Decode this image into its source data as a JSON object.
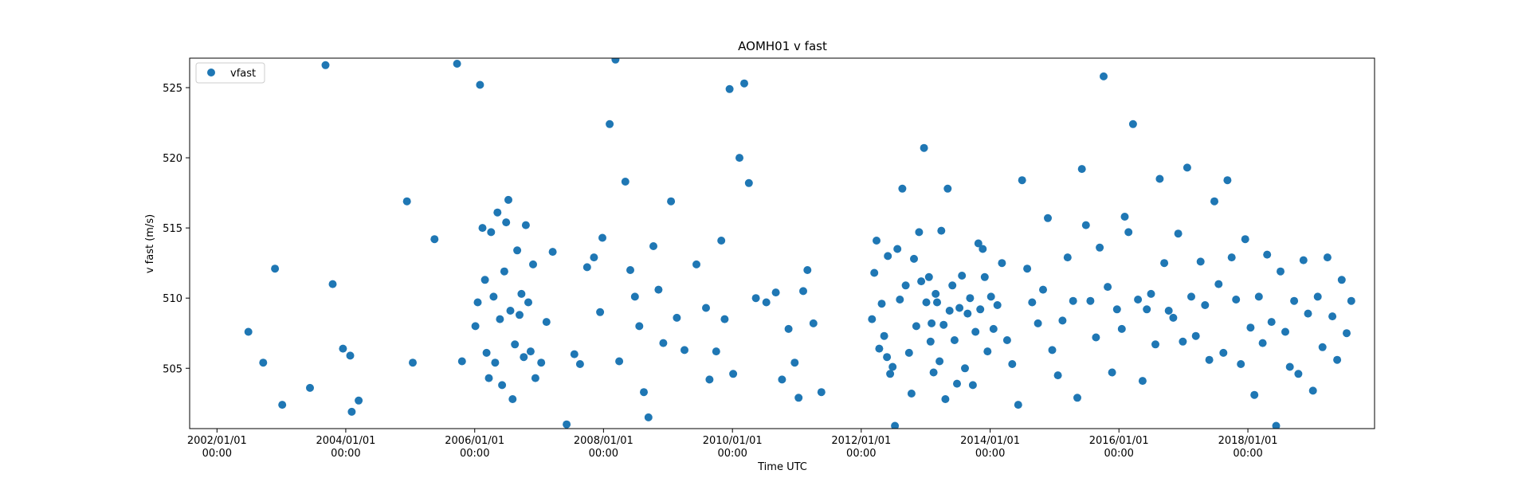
{
  "chart_data": {
    "type": "scatter",
    "title": "AOMH01 v fast",
    "xlabel": "Time UTC",
    "ylabel": "v fast (m/s)",
    "xlim": [
      "2001-07-30",
      "2019-12-20"
    ],
    "ylim": [
      500.7,
      527.1
    ],
    "x_ticks": [
      {
        "date": "2002-01-01",
        "label": "2002/01/01\n00:00"
      },
      {
        "date": "2004-01-01",
        "label": "2004/01/01\n00:00"
      },
      {
        "date": "2006-01-01",
        "label": "2006/01/01\n00:00"
      },
      {
        "date": "2008-01-01",
        "label": "2008/01/01\n00:00"
      },
      {
        "date": "2010-01-01",
        "label": "2010/01/01\n00:00"
      },
      {
        "date": "2012-01-01",
        "label": "2012/01/01\n00:00"
      },
      {
        "date": "2014-01-01",
        "label": "2014/01/01\n00:00"
      },
      {
        "date": "2016-01-01",
        "label": "2016/01/01\n00:00"
      },
      {
        "date": "2018-01-01",
        "label": "2018/01/01\n00:00"
      }
    ],
    "y_ticks": [
      505,
      510,
      515,
      520,
      525
    ],
    "grid": false,
    "legend": {
      "position": "top-left"
    },
    "color": "#1f77b4",
    "series": [
      {
        "name": "vfast",
        "points": [
          [
            "2002-06-28",
            507.6
          ],
          [
            "2002-09-20",
            505.4
          ],
          [
            "2002-11-26",
            512.1
          ],
          [
            "2003-01-06",
            502.4
          ],
          [
            "2003-06-12",
            503.6
          ],
          [
            "2003-09-08",
            526.6
          ],
          [
            "2003-10-19",
            511.0
          ],
          [
            "2003-12-16",
            506.4
          ],
          [
            "2004-01-26",
            505.9
          ],
          [
            "2004-02-04",
            501.9
          ],
          [
            "2004-03-14",
            502.7
          ],
          [
            "2004-12-13",
            516.9
          ],
          [
            "2005-01-15",
            505.4
          ],
          [
            "2005-05-18",
            514.2
          ],
          [
            "2005-09-23",
            526.7
          ],
          [
            "2005-10-21",
            505.5
          ],
          [
            "2006-01-05",
            508.0
          ],
          [
            "2006-01-18",
            509.7
          ],
          [
            "2006-01-31",
            525.2
          ],
          [
            "2006-02-14",
            515.0
          ],
          [
            "2006-02-28",
            511.3
          ],
          [
            "2006-03-09",
            506.1
          ],
          [
            "2006-03-22",
            504.3
          ],
          [
            "2006-04-04",
            514.7
          ],
          [
            "2006-04-18",
            510.1
          ],
          [
            "2006-04-27",
            505.4
          ],
          [
            "2006-05-10",
            516.1
          ],
          [
            "2006-05-24",
            508.5
          ],
          [
            "2006-06-05",
            503.8
          ],
          [
            "2006-06-18",
            511.9
          ],
          [
            "2006-06-28",
            515.4
          ],
          [
            "2006-07-11",
            517.0
          ],
          [
            "2006-07-22",
            509.1
          ],
          [
            "2006-08-04",
            502.8
          ],
          [
            "2006-08-17",
            506.7
          ],
          [
            "2006-08-30",
            513.4
          ],
          [
            "2006-09-12",
            508.8
          ],
          [
            "2006-09-23",
            510.3
          ],
          [
            "2006-10-06",
            505.8
          ],
          [
            "2006-10-18",
            515.2
          ],
          [
            "2006-11-01",
            509.7
          ],
          [
            "2006-11-14",
            506.2
          ],
          [
            "2006-11-28",
            512.4
          ],
          [
            "2006-12-11",
            504.3
          ],
          [
            "2007-01-13",
            505.4
          ],
          [
            "2007-02-12",
            508.3
          ],
          [
            "2007-03-19",
            513.3
          ],
          [
            "2007-06-06",
            501.0
          ],
          [
            "2007-07-20",
            506.0
          ],
          [
            "2007-08-21",
            505.3
          ],
          [
            "2007-09-30",
            512.2
          ],
          [
            "2007-11-08",
            512.9
          ],
          [
            "2007-12-13",
            509.0
          ],
          [
            "2007-12-26",
            514.3
          ],
          [
            "2008-02-05",
            522.4
          ],
          [
            "2008-03-09",
            527.0
          ],
          [
            "2008-03-30",
            505.5
          ],
          [
            "2008-05-04",
            518.3
          ],
          [
            "2008-06-01",
            512.0
          ],
          [
            "2008-06-27",
            510.1
          ],
          [
            "2008-07-22",
            508.0
          ],
          [
            "2008-08-17",
            503.3
          ],
          [
            "2008-09-12",
            501.5
          ],
          [
            "2008-10-10",
            513.7
          ],
          [
            "2008-11-08",
            510.6
          ],
          [
            "2008-12-05",
            506.8
          ],
          [
            "2009-01-18",
            516.9
          ],
          [
            "2009-02-20",
            508.6
          ],
          [
            "2009-04-04",
            506.3
          ],
          [
            "2009-06-11",
            512.4
          ],
          [
            "2009-08-04",
            509.3
          ],
          [
            "2009-08-24",
            504.2
          ],
          [
            "2009-10-01",
            506.2
          ],
          [
            "2009-10-30",
            514.1
          ],
          [
            "2009-11-18",
            508.5
          ],
          [
            "2009-12-16",
            524.9
          ],
          [
            "2010-01-05",
            504.6
          ],
          [
            "2010-02-10",
            520.0
          ],
          [
            "2010-03-09",
            525.3
          ],
          [
            "2010-04-04",
            518.2
          ],
          [
            "2010-05-14",
            510.0
          ],
          [
            "2010-07-12",
            509.7
          ],
          [
            "2010-09-04",
            510.4
          ],
          [
            "2010-10-09",
            504.2
          ],
          [
            "2010-11-15",
            507.8
          ],
          [
            "2010-12-20",
            505.4
          ],
          [
            "2011-01-11",
            502.9
          ],
          [
            "2011-02-06",
            510.5
          ],
          [
            "2011-03-02",
            512.0
          ],
          [
            "2011-04-05",
            508.2
          ],
          [
            "2011-05-20",
            503.3
          ],
          [
            "2012-03-02",
            508.5
          ],
          [
            "2012-04-12",
            506.4
          ],
          [
            "2012-05-26",
            505.8
          ],
          [
            "2012-07-10",
            500.9
          ],
          [
            "2012-09-09",
            510.9
          ],
          [
            "2012-10-12",
            503.2
          ],
          [
            "2012-11-24",
            514.7
          ],
          [
            "2012-12-22",
            520.7
          ],
          [
            "2013-01-28",
            506.9
          ],
          [
            "2013-02-14",
            504.7
          ],
          [
            "2013-03-06",
            509.7
          ],
          [
            "2013-03-30",
            514.8
          ],
          [
            "2013-04-22",
            502.8
          ],
          [
            "2013-05-05",
            517.8
          ],
          [
            "2013-06-13",
            507.0
          ],
          [
            "2013-07-11",
            509.3
          ],
          [
            "2013-08-26",
            508.9
          ],
          [
            "2013-09-25",
            503.8
          ],
          [
            "2013-10-26",
            513.9
          ],
          [
            "2013-11-20",
            513.5
          ],
          [
            "2013-12-17",
            506.2
          ],
          [
            "2014-01-20",
            507.8
          ],
          [
            "2014-02-11",
            509.5
          ],
          [
            "2014-03-09",
            512.5
          ],
          [
            "2014-04-07",
            507.0
          ],
          [
            "2014-05-06",
            505.3
          ],
          [
            "2014-06-09",
            502.4
          ],
          [
            "2014-07-01",
            518.4
          ],
          [
            "2014-07-30",
            512.1
          ],
          [
            "2014-08-27",
            509.7
          ],
          [
            "2014-09-29",
            508.2
          ],
          [
            "2014-10-28",
            510.6
          ],
          [
            "2014-11-24",
            515.7
          ],
          [
            "2014-12-19",
            506.3
          ],
          [
            "2015-01-20",
            504.5
          ],
          [
            "2015-02-15",
            508.4
          ],
          [
            "2015-03-16",
            512.9
          ],
          [
            "2015-04-16",
            509.8
          ],
          [
            "2015-05-10",
            502.9
          ],
          [
            "2015-06-05",
            519.2
          ],
          [
            "2015-06-28",
            515.2
          ],
          [
            "2015-07-23",
            509.8
          ],
          [
            "2015-08-24",
            507.2
          ],
          [
            "2015-09-14",
            513.6
          ],
          [
            "2015-10-06",
            525.8
          ],
          [
            "2015-10-29",
            510.8
          ],
          [
            "2015-11-23",
            504.7
          ],
          [
            "2015-12-21",
            509.2
          ],
          [
            "2016-01-17",
            507.8
          ],
          [
            "2016-02-03",
            515.8
          ],
          [
            "2016-02-24",
            514.7
          ],
          [
            "2016-03-21",
            522.4
          ],
          [
            "2016-04-18",
            509.9
          ],
          [
            "2016-05-14",
            504.1
          ],
          [
            "2016-06-07",
            509.2
          ],
          [
            "2016-07-01",
            510.3
          ],
          [
            "2016-07-26",
            506.7
          ],
          [
            "2016-08-19",
            518.5
          ],
          [
            "2016-09-14",
            512.5
          ],
          [
            "2016-10-09",
            509.1
          ],
          [
            "2016-11-04",
            508.6
          ],
          [
            "2016-12-02",
            514.6
          ],
          [
            "2016-12-28",
            506.9
          ],
          [
            "2017-01-22",
            519.3
          ],
          [
            "2017-02-14",
            510.1
          ],
          [
            "2017-03-12",
            507.3
          ],
          [
            "2017-04-08",
            512.6
          ],
          [
            "2017-05-03",
            509.5
          ],
          [
            "2017-05-27",
            505.6
          ],
          [
            "2017-06-25",
            516.9
          ],
          [
            "2017-07-19",
            511.0
          ],
          [
            "2017-08-15",
            506.1
          ],
          [
            "2017-09-07",
            518.4
          ],
          [
            "2017-10-01",
            512.9
          ],
          [
            "2017-10-26",
            509.9
          ],
          [
            "2017-11-22",
            505.3
          ],
          [
            "2017-12-17",
            514.2
          ],
          [
            "2018-01-16",
            507.9
          ],
          [
            "2018-02-07",
            503.1
          ],
          [
            "2018-03-04",
            510.1
          ],
          [
            "2018-03-26",
            506.8
          ],
          [
            "2018-04-20",
            513.1
          ],
          [
            "2018-05-15",
            508.3
          ],
          [
            "2018-06-10",
            500.9
          ],
          [
            "2018-07-05",
            511.9
          ],
          [
            "2018-08-01",
            507.6
          ],
          [
            "2018-08-27",
            505.1
          ],
          [
            "2018-09-20",
            509.8
          ],
          [
            "2018-10-14",
            504.6
          ],
          [
            "2018-11-12",
            512.7
          ],
          [
            "2018-12-08",
            508.9
          ],
          [
            "2019-01-05",
            503.4
          ],
          [
            "2019-02-01",
            510.1
          ],
          [
            "2019-02-28",
            506.5
          ],
          [
            "2019-03-28",
            512.9
          ],
          [
            "2019-04-25",
            508.7
          ],
          [
            "2019-05-22",
            505.6
          ],
          [
            "2019-06-17",
            511.3
          ],
          [
            "2019-07-15",
            507.5
          ],
          [
            "2019-08-10",
            509.8
          ],
          [
            "2012-03-15",
            511.8
          ],
          [
            "2012-03-28",
            514.1
          ],
          [
            "2012-04-26",
            509.6
          ],
          [
            "2012-05-10",
            507.3
          ],
          [
            "2012-05-31",
            513.0
          ],
          [
            "2012-06-13",
            504.6
          ],
          [
            "2012-06-27",
            505.1
          ],
          [
            "2012-07-24",
            513.5
          ],
          [
            "2012-08-07",
            509.9
          ],
          [
            "2012-08-21",
            517.8
          ],
          [
            "2012-09-28",
            506.1
          ],
          [
            "2012-10-26",
            512.8
          ],
          [
            "2012-11-08",
            508.0
          ],
          [
            "2012-12-06",
            511.2
          ],
          [
            "2013-01-04",
            509.7
          ],
          [
            "2013-01-19",
            511.5
          ],
          [
            "2013-02-03",
            508.2
          ],
          [
            "2013-02-26",
            510.3
          ],
          [
            "2013-03-20",
            505.5
          ],
          [
            "2013-04-12",
            508.1
          ],
          [
            "2013-05-16",
            509.1
          ],
          [
            "2013-06-01",
            510.9
          ],
          [
            "2013-06-27",
            503.9
          ],
          [
            "2013-07-25",
            511.6
          ],
          [
            "2013-08-11",
            505.0
          ],
          [
            "2013-09-09",
            510.0
          ],
          [
            "2013-10-10",
            507.6
          ],
          [
            "2013-11-06",
            509.2
          ],
          [
            "2013-12-01",
            511.5
          ],
          [
            "2014-01-06",
            510.1
          ]
        ]
      }
    ]
  }
}
